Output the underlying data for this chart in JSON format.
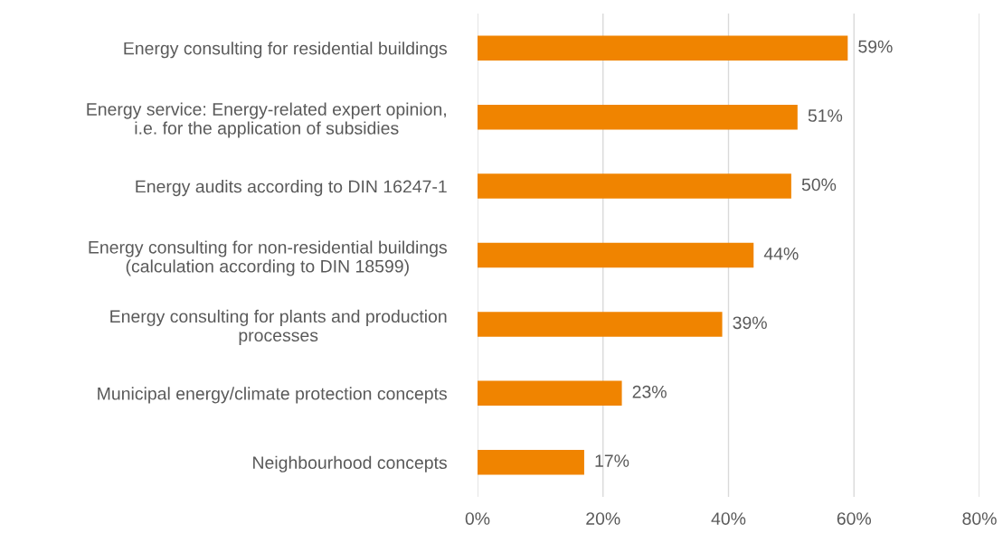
{
  "chart_data": {
    "type": "bar",
    "orientation": "horizontal",
    "categories": [
      "Energy consulting for residential buildings",
      "Energy service: Energy-related expert opinion,\ni.e. for the application of subsidies",
      "Energy audits according to DIN 16247-1",
      "Energy consulting for non-residential buildings\n(calculation according to DIN 18599)",
      "Energy consulting for plants and production\nprocesses",
      "Municipal energy/climate protection concepts",
      "Neighbourhood concepts"
    ],
    "values": [
      59,
      51,
      50,
      44,
      39,
      23,
      17
    ],
    "value_labels": [
      "59%",
      "51%",
      "50%",
      "44%",
      "39%",
      "23%",
      "17%"
    ],
    "color": "#f08400",
    "xlim": [
      0,
      80
    ],
    "xticks": [
      {
        "value": 0,
        "label": "0%"
      },
      {
        "value": 20,
        "label": "20%"
      },
      {
        "value": 40,
        "label": "40%"
      },
      {
        "value": 60,
        "label": "60%"
      },
      {
        "value": 80,
        "label": "80%"
      }
    ],
    "grid": "x"
  }
}
